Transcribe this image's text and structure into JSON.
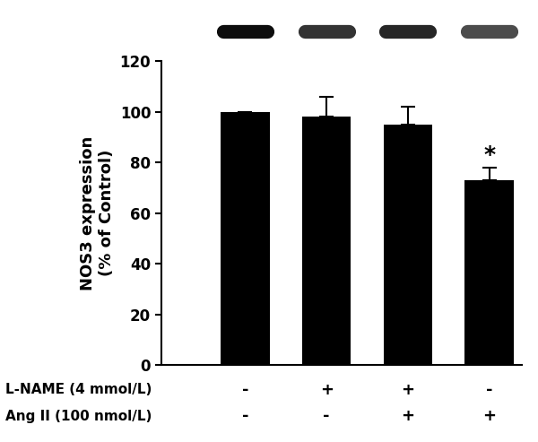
{
  "chart_data": {
    "type": "bar",
    "categories": [
      null,
      null,
      null,
      null
    ],
    "values": [
      100,
      98,
      95,
      73
    ],
    "errors": [
      0,
      8,
      7,
      5
    ],
    "significance": [
      null,
      null,
      null,
      "*"
    ],
    "color": "#000000",
    "y_label": "NOS3 expression\n(% of Control)",
    "ylim": [
      0,
      120
    ],
    "yticks": [
      0,
      20,
      40,
      60,
      80,
      100,
      120
    ],
    "grid": false,
    "conditions": [
      {
        "label": "L-NAME (4 mmol/L)",
        "signs": [
          "-",
          "+",
          "+",
          "-"
        ]
      },
      {
        "label": "Ang II (100 nmol/L)",
        "signs": [
          "-",
          "-",
          "+",
          "+"
        ]
      }
    ]
  }
}
